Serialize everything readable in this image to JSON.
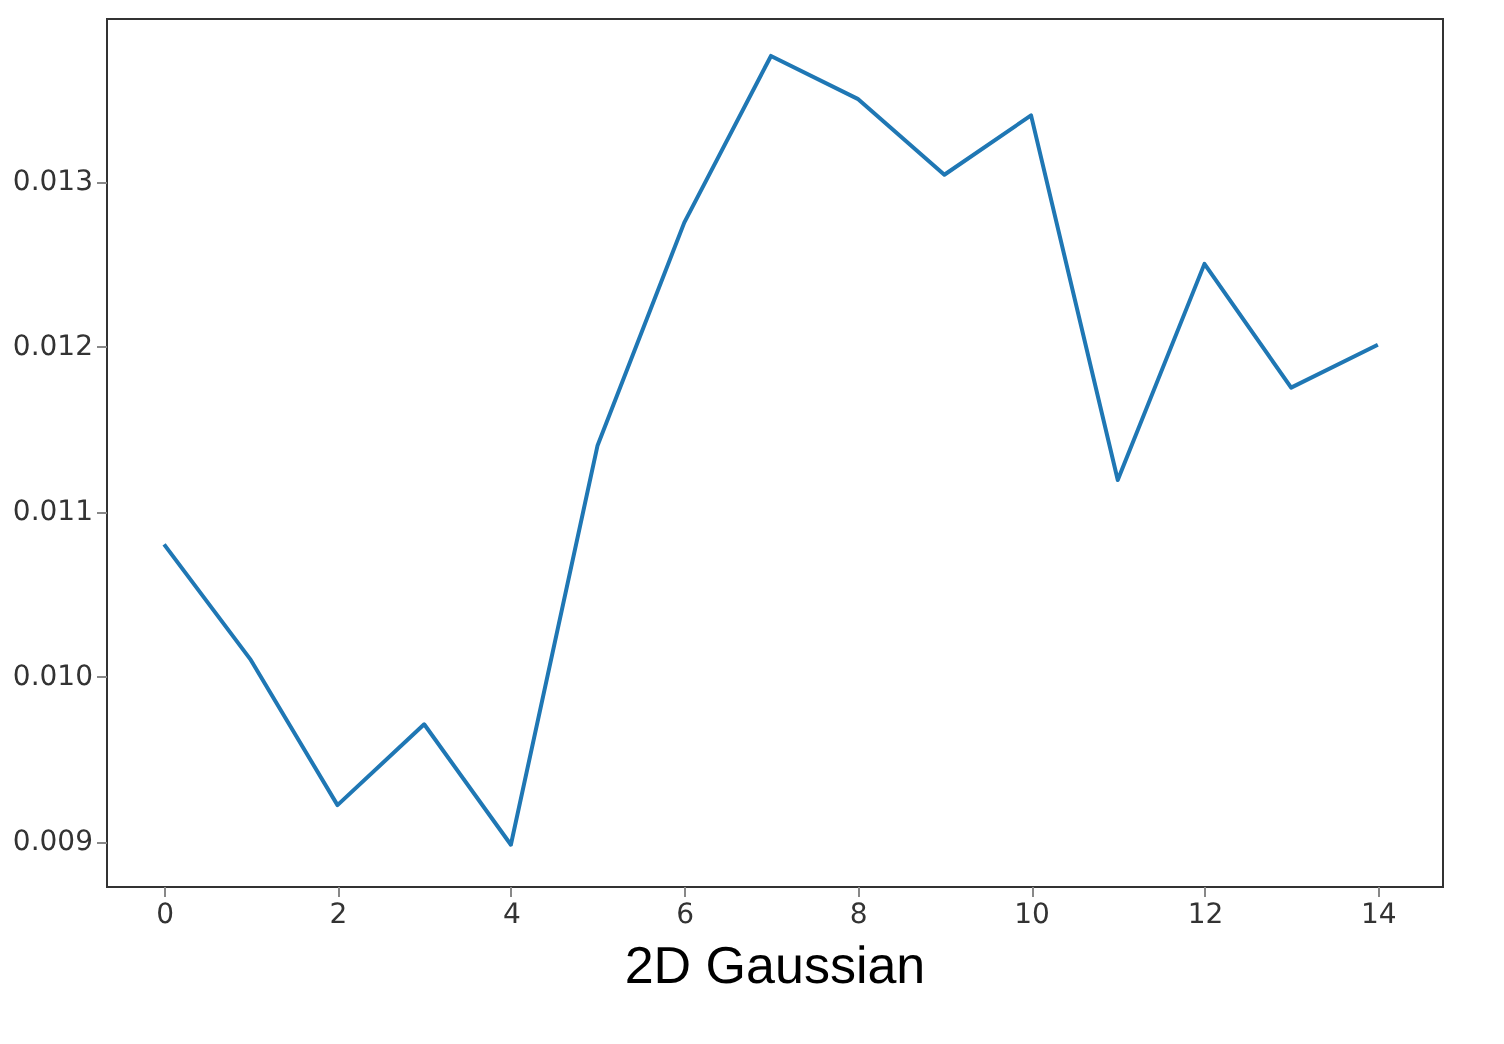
{
  "chart_data": {
    "type": "line",
    "xlabel": "2D Gaussian",
    "x": [
      0,
      1,
      2,
      3,
      4,
      5,
      6,
      7,
      8,
      9,
      10,
      11,
      12,
      13,
      14
    ],
    "series": [
      {
        "color": "#1f77b4",
        "values": [
          0.0108,
          0.0101,
          0.00922,
          0.00971,
          0.00898,
          0.0114,
          0.01275,
          0.01376,
          0.0135,
          0.01304,
          0.0134,
          0.01119,
          0.0125,
          0.01175,
          0.01201
        ]
      }
    ],
    "xlim": [
      -0.67,
      14.74
    ],
    "ylim": [
      0.00873,
      0.01399
    ],
    "xticks": [
      0,
      2,
      4,
      6,
      8,
      10,
      12,
      14
    ],
    "yticks": [
      {
        "value": 0.009,
        "label": "0.009"
      },
      {
        "value": 0.01,
        "label": "0.010"
      },
      {
        "value": 0.011,
        "label": "0.011"
      },
      {
        "value": 0.012,
        "label": "0.012"
      },
      {
        "value": 0.013,
        "label": "0.013"
      }
    ],
    "grid": false
  }
}
